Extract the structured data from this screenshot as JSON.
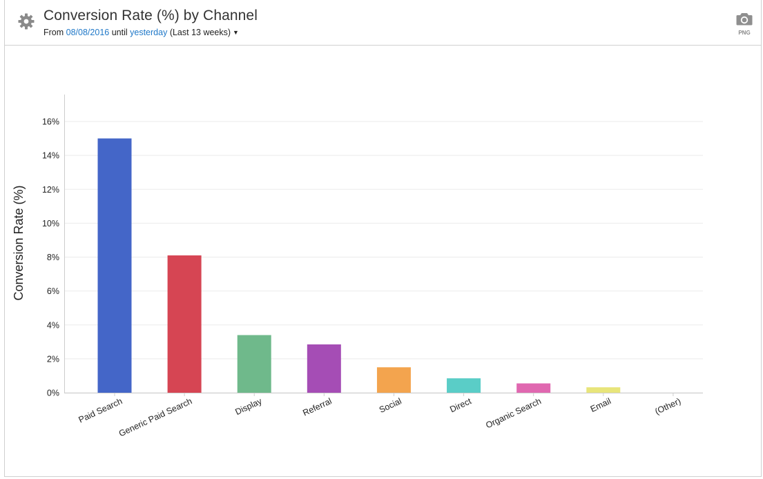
{
  "header": {
    "title": "Conversion Rate (%) by Channel",
    "from_label": "From",
    "start_date": "08/08/2016",
    "until_label": "until",
    "end_date": "yesterday",
    "range_note": "(Last 13 weeks)",
    "png_label": "PNG"
  },
  "icons": {
    "settings": "gear-icon",
    "export": "camera-icon",
    "range": "caret-down-icon"
  },
  "chart_data": {
    "type": "bar",
    "title": "",
    "xlabel": "",
    "ylabel": "Conversion Rate (%)",
    "ylim": [
      0,
      16
    ],
    "yticks": [
      0,
      2,
      4,
      6,
      8,
      10,
      12,
      14,
      16
    ],
    "ytick_format": "%",
    "grid": true,
    "categories": [
      "Paid Search",
      "Generic Paid Search",
      "Display",
      "Referral",
      "Social",
      "Direct",
      "Organic Search",
      "Email",
      "(Other)"
    ],
    "values": [
      15.0,
      8.1,
      3.4,
      2.85,
      1.5,
      0.85,
      0.55,
      0.32,
      0
    ],
    "colors": [
      "#4466c8",
      "#d64553",
      "#6fb98b",
      "#a54db5",
      "#f3a44e",
      "#5acdc7",
      "#e068b0",
      "#e8e57a",
      "#cccccc"
    ]
  }
}
